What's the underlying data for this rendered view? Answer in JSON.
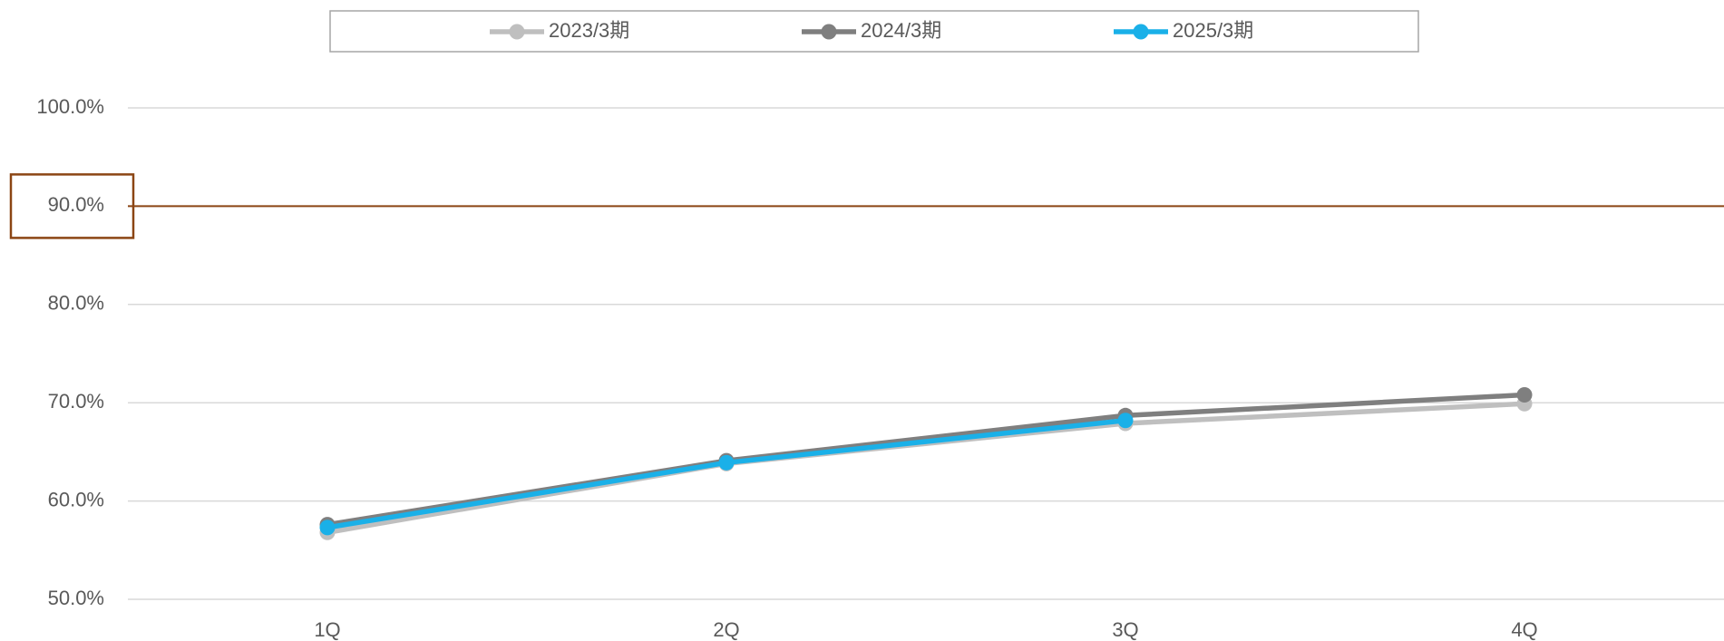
{
  "chart_data": {
    "type": "line",
    "categories": [
      "1Q",
      "2Q",
      "3Q",
      "4Q"
    ],
    "series": [
      {
        "name": "2023/3期",
        "color": "#bfbfbf",
        "values": [
          56.8,
          63.8,
          67.9,
          69.9
        ]
      },
      {
        "name": "2024/3期",
        "color": "#7f7f7f",
        "values": [
          57.6,
          64.1,
          68.7,
          70.8
        ]
      },
      {
        "name": "2025/3期",
        "color": "#1ab0e8",
        "values": [
          57.3,
          63.9,
          68.2,
          null
        ]
      }
    ],
    "ylim": [
      50,
      100
    ],
    "yticks": [
      {
        "value": 50,
        "label": "50.0%"
      },
      {
        "value": 60,
        "label": "60.0%"
      },
      {
        "value": 70,
        "label": "70.0%"
      },
      {
        "value": 80,
        "label": "80.0%"
      },
      {
        "value": 90,
        "label": "90.0%"
      },
      {
        "value": 100,
        "label": "100.0%"
      }
    ],
    "grid": true,
    "legend": "top",
    "reference_line": {
      "value": 90,
      "color": "#8b4513"
    }
  }
}
